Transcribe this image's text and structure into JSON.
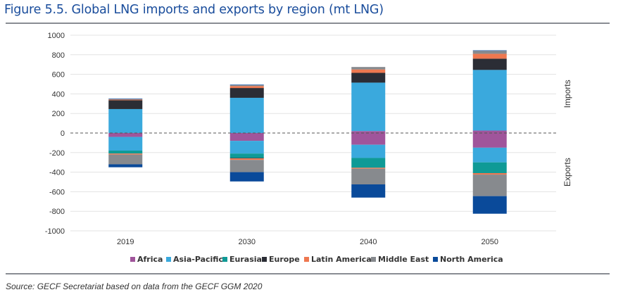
{
  "figure": {
    "title": "Figure 5.5. Global LNG imports and exports by region (mt LNG)",
    "source": "Source: GECF Secretariat based on data from the GECF GGM 2020"
  },
  "chart_data": {
    "type": "bar",
    "stacked": true,
    "title": "Figure 5.5. Global LNG imports and exports by region (mt LNG)",
    "xlabel": "",
    "ylabel": "",
    "ylim": [
      -1000,
      1000
    ],
    "yticks": [
      1000,
      800,
      600,
      400,
      200,
      0,
      -200,
      -400,
      -600,
      -800,
      -1000
    ],
    "grid": true,
    "legend_position": "bottom",
    "side_labels": {
      "upper": "Imports",
      "lower": "Exports"
    },
    "categories": [
      "2019",
      "2030",
      "2040",
      "2050"
    ],
    "series": [
      {
        "name": "Africa",
        "color": "#a0559b",
        "imports": [
          0,
          0,
          20,
          25
        ],
        "exports": [
          -40,
          -80,
          -120,
          -150
        ]
      },
      {
        "name": "Asia-Pacific",
        "color": "#3aa9dd",
        "imports": [
          245,
          360,
          495,
          620
        ],
        "exports": [
          -140,
          -130,
          -135,
          -150
        ]
      },
      {
        "name": "Eurasia",
        "color": "#0f9a96",
        "imports": [
          0,
          0,
          0,
          0
        ],
        "exports": [
          -30,
          -45,
          -100,
          -110
        ]
      },
      {
        "name": "Europe",
        "color": "#2b2d35",
        "imports": [
          90,
          100,
          100,
          115
        ],
        "exports": [
          0,
          -5,
          0,
          0
        ]
      },
      {
        "name": "Latin America",
        "color": "#ee7850",
        "imports": [
          7,
          20,
          35,
          50
        ],
        "exports": [
          -10,
          -15,
          -10,
          -15
        ]
      },
      {
        "name": "Middle East",
        "color": "#878a8e",
        "imports": [
          5,
          10,
          25,
          30
        ],
        "exports": [
          -100,
          -125,
          -160,
          -220
        ]
      },
      {
        "name": "North America",
        "color": "#0a4a9a",
        "imports": [
          5,
          5,
          0,
          5
        ],
        "exports": [
          -30,
          -95,
          -135,
          -180
        ]
      }
    ]
  }
}
